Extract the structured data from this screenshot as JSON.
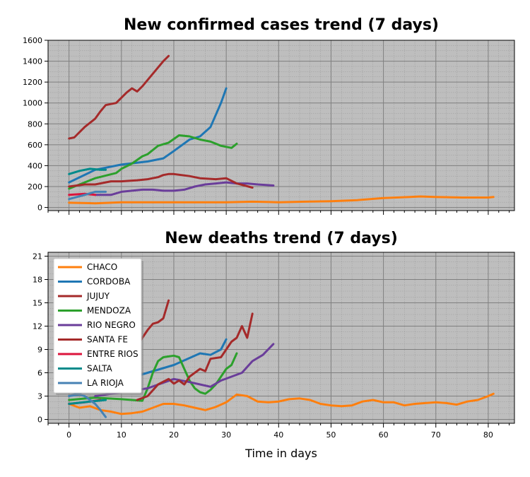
{
  "colors": {
    "CHACO": "#ff7f0e",
    "CORDOBA": "#1f77b4",
    "JUJUY": "#a52a2a",
    "MENDOZA": "#2ca02c",
    "RIO NEGRO": "#6a3d9a",
    "SANTA FE": "#a52a2a",
    "ENTRE RIOS": "#dc143c",
    "SALTA": "#008b8b",
    "LA RIOJA": "#4682b4",
    "plot_bg": "#bebebe",
    "major_grid": "#7f7f7f",
    "minor_grid": "#9a9a9a"
  },
  "chart_data": [
    {
      "type": "line",
      "title": "New confirmed cases trend (7 days)",
      "xlabel": "",
      "ylabel": "",
      "xlim": [
        -4,
        85
      ],
      "ylim": [
        -30,
        1600
      ],
      "yticks": [
        0,
        200,
        400,
        600,
        800,
        1000,
        1200,
        1400,
        1600
      ],
      "grid": true,
      "series": [
        {
          "name": "CHACO",
          "x": [
            0,
            5,
            10,
            15,
            20,
            25,
            30,
            35,
            40,
            45,
            50,
            55,
            60,
            65,
            67,
            70,
            75,
            80,
            81
          ],
          "y": [
            45,
            40,
            50,
            50,
            50,
            50,
            50,
            55,
            50,
            55,
            60,
            70,
            90,
            100,
            105,
            100,
            95,
            95,
            100
          ]
        },
        {
          "name": "CORDOBA",
          "x": [
            0,
            5,
            10,
            15,
            18,
            20,
            23,
            25,
            27,
            29,
            30
          ],
          "y": [
            240,
            360,
            410,
            440,
            470,
            540,
            650,
            680,
            770,
            1000,
            1140
          ]
        },
        {
          "name": "JUJUY",
          "x": [
            0,
            1,
            2,
            3,
            4,
            5,
            6,
            7,
            8,
            9,
            10,
            11,
            12,
            13,
            14,
            15,
            16,
            17,
            18,
            19
          ],
          "y": [
            660,
            670,
            720,
            770,
            810,
            850,
            920,
            980,
            990,
            1000,
            1050,
            1100,
            1140,
            1110,
            1160,
            1220,
            1280,
            1340,
            1400,
            1450
          ]
        },
        {
          "name": "MENDOZA",
          "x": [
            0,
            5,
            9,
            10,
            12,
            14,
            15,
            17,
            19,
            21,
            23,
            25,
            27,
            29,
            31,
            32
          ],
          "y": [
            180,
            280,
            330,
            370,
            420,
            490,
            510,
            590,
            620,
            690,
            680,
            650,
            630,
            590,
            570,
            610
          ]
        },
        {
          "name": "RIO NEGRO",
          "x": [
            5,
            8,
            10,
            12,
            14,
            16,
            18,
            20,
            22,
            24,
            26,
            28,
            30,
            32,
            34,
            36,
            39
          ],
          "y": [
            120,
            120,
            150,
            160,
            170,
            170,
            160,
            160,
            170,
            200,
            220,
            230,
            240,
            230,
            230,
            220,
            210
          ]
        },
        {
          "name": "SANTA FE",
          "x": [
            0,
            3,
            5,
            8,
            10,
            13,
            15,
            17,
            18,
            19,
            20,
            23,
            25,
            28,
            30,
            32,
            35
          ],
          "y": [
            200,
            220,
            220,
            250,
            250,
            260,
            270,
            290,
            310,
            320,
            320,
            300,
            280,
            270,
            280,
            230,
            190
          ]
        },
        {
          "name": "ENTRE RIOS",
          "x": [
            0,
            3,
            5
          ],
          "y": [
            120,
            130,
            120
          ]
        },
        {
          "name": "SALTA",
          "x": [
            0,
            2,
            4,
            6,
            7
          ],
          "y": [
            320,
            350,
            370,
            360,
            360
          ]
        },
        {
          "name": "LA RIOJA",
          "x": [
            0,
            3,
            5,
            7
          ],
          "y": [
            80,
            120,
            150,
            150
          ]
        }
      ]
    },
    {
      "type": "line",
      "title": "New deaths trend (7 days)",
      "xlabel": "Time in days",
      "ylabel": "",
      "xlim": [
        -4,
        85
      ],
      "ylim": [
        -0.5,
        21.5
      ],
      "yticks": [
        0,
        3,
        6,
        9,
        12,
        15,
        18,
        21
      ],
      "xticks": [
        0,
        10,
        20,
        30,
        40,
        50,
        60,
        70,
        80
      ],
      "grid": true,
      "legend": "top-left",
      "series": [
        {
          "name": "CHACO",
          "x": [
            0,
            2,
            4,
            6,
            8,
            10,
            12,
            14,
            16,
            18,
            20,
            22,
            24,
            26,
            28,
            30,
            32,
            34,
            36,
            38,
            40,
            42,
            44,
            46,
            48,
            50,
            52,
            54,
            56,
            58,
            60,
            62,
            64,
            66,
            68,
            70,
            72,
            74,
            76,
            78,
            80,
            81
          ],
          "y": [
            2,
            1.5,
            1.7,
            1.2,
            1,
            0.7,
            0.8,
            1,
            1.5,
            2,
            2,
            1.8,
            1.5,
            1.2,
            1.6,
            2.2,
            3.2,
            3,
            2.3,
            2.2,
            2.3,
            2.6,
            2.7,
            2.5,
            2,
            1.8,
            1.7,
            1.8,
            2.3,
            2.5,
            2.2,
            2.2,
            1.8,
            2,
            2.1,
            2.2,
            2.1,
            1.9,
            2.3,
            2.5,
            3,
            3.3
          ]
        },
        {
          "name": "CORDOBA",
          "x": [
            0,
            5,
            10,
            15,
            20,
            25,
            27,
            29,
            30
          ],
          "y": [
            3,
            4,
            5,
            6,
            7,
            8.5,
            8.3,
            9,
            10.3
          ]
        },
        {
          "name": "JUJUY",
          "x": [
            13,
            15,
            16,
            17,
            18,
            19
          ],
          "y": [
            9.5,
            11.5,
            12.3,
            12.5,
            13,
            15.3
          ]
        },
        {
          "name": "MENDOZA",
          "x": [
            0,
            5,
            10,
            14,
            15,
            16,
            17,
            18,
            19,
            20,
            21,
            22,
            23,
            24,
            25,
            26,
            27,
            28,
            29,
            30,
            31,
            32
          ],
          "y": [
            2.5,
            2.8,
            2.6,
            2.4,
            4,
            6,
            7.5,
            8,
            8.1,
            8.2,
            8,
            6.5,
            5,
            4,
            3.5,
            3.3,
            3.8,
            4.5,
            5.5,
            6.5,
            7,
            8.5
          ]
        },
        {
          "name": "RIO NEGRO",
          "x": [
            5,
            10,
            15,
            20,
            23,
            25,
            27,
            29,
            31,
            33,
            35,
            37,
            39
          ],
          "y": [
            3,
            3.5,
            4,
            5.2,
            4.8,
            4.5,
            4.2,
            5,
            5.5,
            6,
            7.5,
            8.3,
            9.7
          ]
        },
        {
          "name": "SANTA FE",
          "x": [
            13,
            15,
            17,
            19,
            20,
            21,
            22,
            23,
            25,
            26,
            27,
            29,
            31,
            32,
            33,
            34,
            35
          ],
          "y": [
            2.5,
            3,
            4.5,
            5.2,
            4.6,
            5,
            4.5,
            5.5,
            6.5,
            6.2,
            7.8,
            8,
            10,
            10.5,
            12,
            10.5,
            13.6
          ]
        },
        {
          "name": "ENTRE RIOS",
          "x": [
            0,
            3,
            6
          ],
          "y": [
            2,
            2.2,
            2.5
          ]
        },
        {
          "name": "SALTA",
          "x": [
            0,
            4,
            7
          ],
          "y": [
            2,
            2.3,
            2.5
          ]
        },
        {
          "name": "LA RIOJA",
          "x": [
            0,
            2,
            3,
            4,
            5,
            6,
            7
          ],
          "y": [
            3,
            3.2,
            3,
            2.5,
            2,
            1.2,
            0.3
          ]
        }
      ]
    }
  ]
}
